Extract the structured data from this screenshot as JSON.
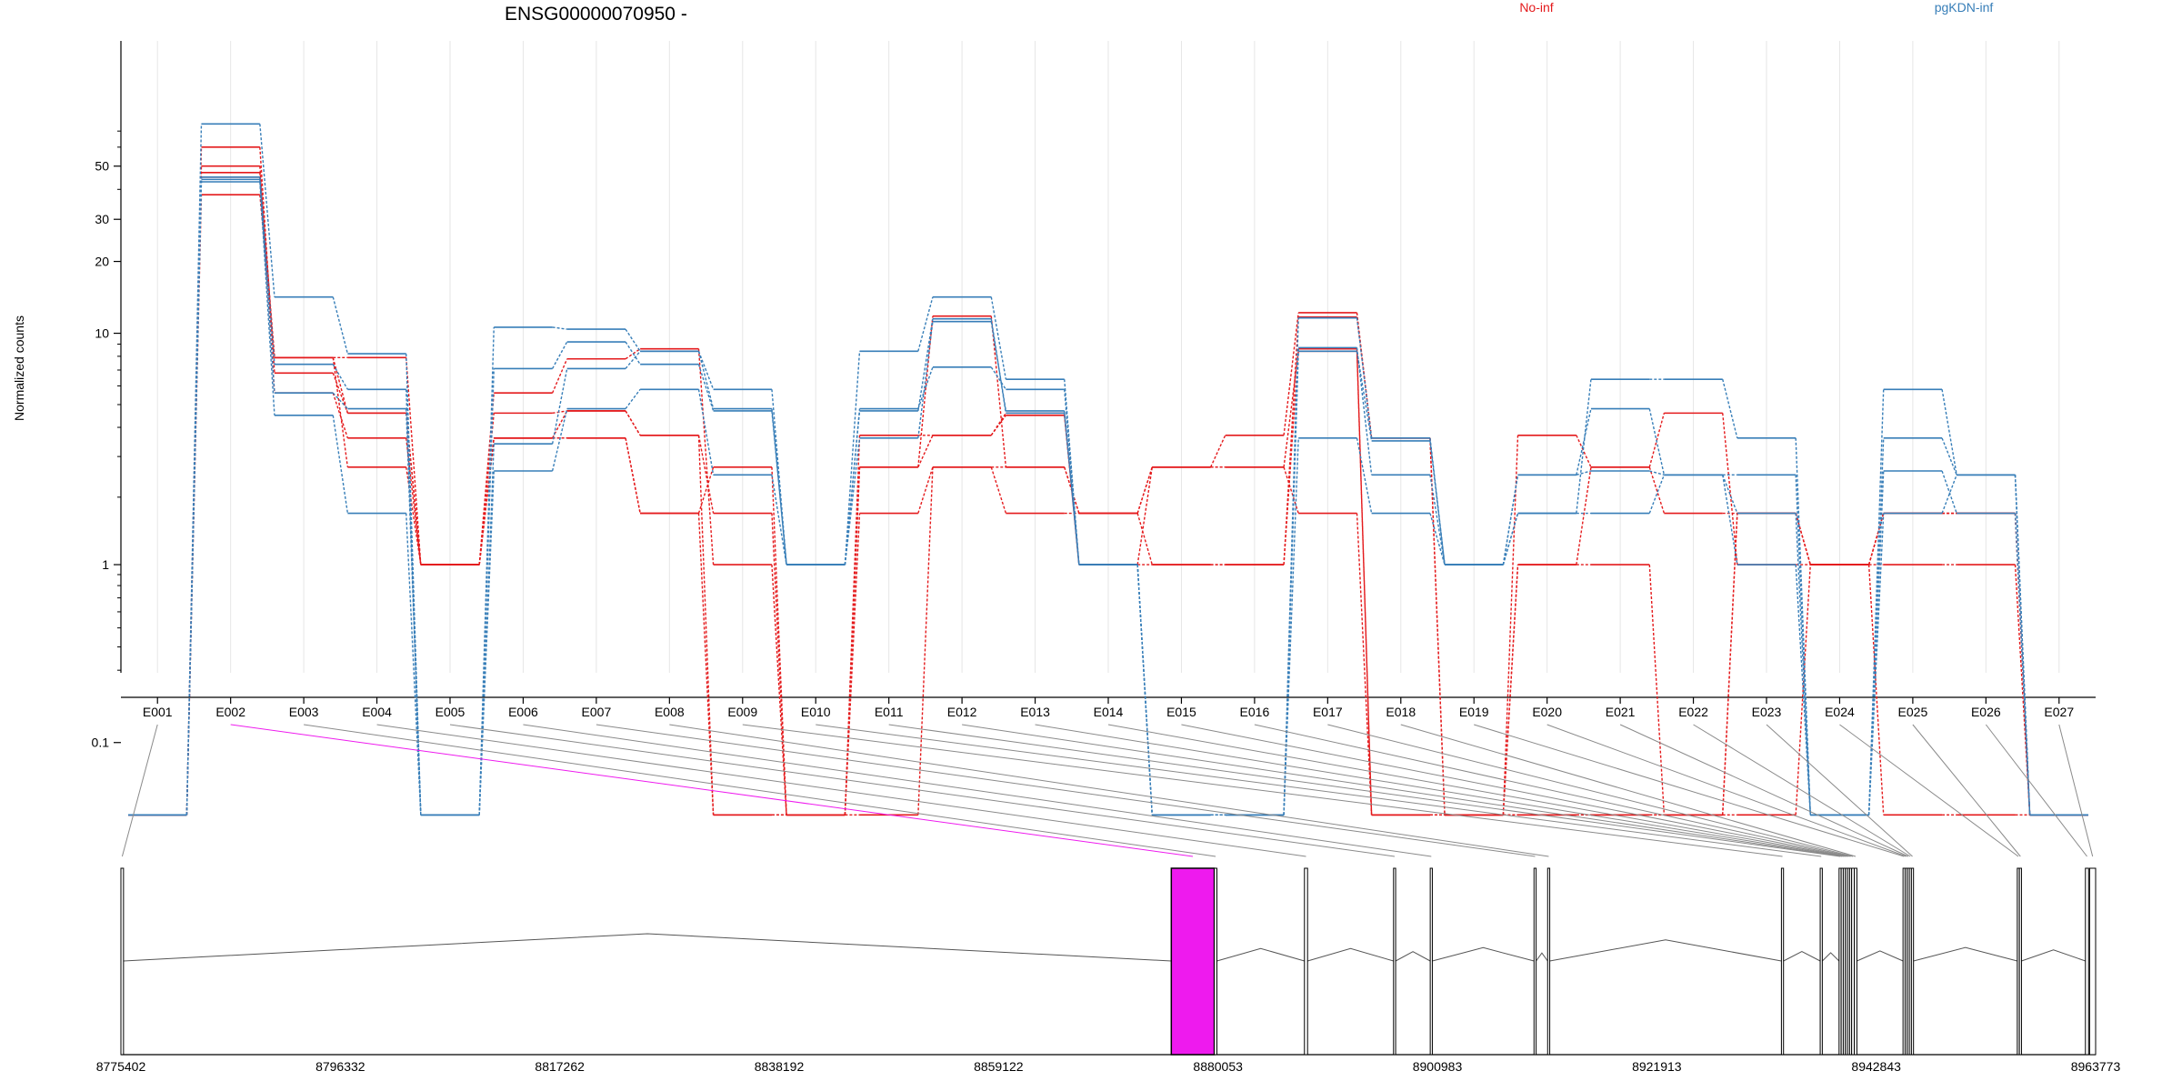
{
  "chart_data": {
    "type": "line",
    "title": "ENSG00000070950 -",
    "xlabel": "",
    "ylabel": "Normalized counts",
    "y_scale": "log",
    "y_ticks": [
      0.1,
      1,
      10,
      20,
      30,
      50
    ],
    "categories": [
      "E001",
      "E002",
      "E003",
      "E004",
      "E005",
      "E006",
      "E007",
      "E008",
      "E009",
      "E010",
      "E011",
      "E012",
      "E013",
      "E014",
      "E015",
      "E016",
      "E017",
      "E018",
      "E019",
      "E020",
      "E021",
      "E022",
      "E023",
      "E024",
      "E025",
      "E026",
      "E027"
    ],
    "series_colors": {
      "No-inf": "#e41a1c",
      "pgKDN-inf": "#377eb8"
    },
    "legend_position": "top-right",
    "legend": [
      {
        "name": "No-inf",
        "color": "#e41a1c"
      },
      {
        "name": "pgKDN-inf",
        "color": "#377eb8"
      }
    ],
    "series": [
      {
        "group": "No-inf",
        "values": [
          0,
          47,
          7.9,
          4.6,
          1,
          4.6,
          4.7,
          3.7,
          0,
          0,
          3.7,
          3.7,
          4.6,
          1,
          2.7,
          3.7,
          12.2,
          3.6,
          0,
          3.7,
          2.7,
          4.6,
          1,
          1,
          1,
          1,
          0
        ]
      },
      {
        "group": "No-inf",
        "values": [
          0,
          60,
          6.8,
          4.6,
          1,
          3.6,
          3.6,
          1.7,
          0,
          0,
          2.7,
          3.7,
          4.5,
          1,
          1,
          1,
          11.7,
          3.6,
          0,
          1,
          2.7,
          1.7,
          1.7,
          1,
          1.7,
          1.7,
          0
        ]
      },
      {
        "group": "No-inf",
        "values": [
          0,
          50,
          5.6,
          3.6,
          1,
          5.6,
          7.8,
          8.6,
          1,
          0,
          0,
          2.7,
          1.7,
          1.7,
          1,
          1,
          8.6,
          0,
          0,
          0,
          0,
          0,
          1.7,
          1,
          1.7,
          1.7,
          0
        ]
      },
      {
        "group": "No-inf",
        "values": [
          0,
          38,
          7.9,
          2.7,
          1,
          3.6,
          4.7,
          3.7,
          1.7,
          0,
          1.7,
          2.7,
          2.7,
          1.7,
          2.7,
          2.7,
          1.7,
          0,
          0,
          1,
          1,
          0,
          1.7,
          1,
          0,
          0,
          0
        ]
      },
      {
        "group": "No-inf",
        "values": [
          0,
          45,
          7.9,
          7.9,
          1,
          3.6,
          3.6,
          1.7,
          2.7,
          0,
          2.7,
          11.8,
          2.7,
          1.7,
          2.7,
          2.7,
          8.4,
          0,
          0,
          0,
          0,
          0,
          0,
          1,
          1.7,
          1.7,
          0
        ]
      },
      {
        "group": "pgKDN-inf",
        "values": [
          0,
          75,
          14.2,
          8.2,
          0,
          10.6,
          10.4,
          8.4,
          5.8,
          1,
          8.4,
          14.2,
          6.4,
          1,
          0,
          0,
          11.6,
          3.6,
          1,
          1.7,
          6.4,
          6.4,
          3.6,
          0,
          5.8,
          2.5,
          0
        ]
      },
      {
        "group": "pgKDN-inf",
        "values": [
          0,
          45,
          7.4,
          5.8,
          0,
          7.1,
          9.2,
          7.4,
          4.7,
          1,
          4.8,
          7.2,
          5.8,
          1,
          0,
          0,
          8.4,
          3.5,
          1,
          2.5,
          4.8,
          2.5,
          2.5,
          0,
          3.6,
          2.5,
          0
        ]
      },
      {
        "group": "pgKDN-inf",
        "values": [
          0,
          44,
          5.6,
          4.8,
          0,
          3.4,
          7.1,
          8.4,
          4.8,
          1,
          4.7,
          11.5,
          4.6,
          1,
          0,
          0,
          8.7,
          2.5,
          1,
          2.5,
          2.6,
          2.5,
          1.7,
          0,
          2.6,
          1.7,
          0
        ]
      },
      {
        "group": "pgKDN-inf",
        "values": [
          0,
          43,
          4.5,
          1.7,
          0,
          2.6,
          4.8,
          5.8,
          2.5,
          1,
          3.6,
          11.2,
          4.7,
          1,
          0,
          0,
          3.6,
          1.7,
          1,
          1.7,
          1.7,
          2.5,
          1,
          0,
          1.7,
          2.5,
          0
        ]
      }
    ],
    "gene_model": {
      "genomic_axis_ticks": [
        "8775402",
        "8796332",
        "8817262",
        "8838192",
        "8859122",
        "8880053",
        "8900983",
        "8921913",
        "8942843",
        "8963773"
      ],
      "genomic_range": [
        8775402,
        8963773
      ],
      "highlighted_exon": "E002",
      "highlight_color": "#ee1aee",
      "exons": [
        {
          "id": "E001",
          "start": 8775402,
          "end": 8775650
        },
        {
          "id": "E002",
          "start": 8875600,
          "end": 8879700
        },
        {
          "id": "E003",
          "start": 8879700,
          "end": 8879950
        },
        {
          "id": "E004",
          "start": 8888300,
          "end": 8888600
        },
        {
          "id": "E005",
          "start": 8896800,
          "end": 8897000
        },
        {
          "id": "E006",
          "start": 8900300,
          "end": 8900500
        },
        {
          "id": "E007",
          "start": 8910200,
          "end": 8910400
        },
        {
          "id": "E008",
          "start": 8911500,
          "end": 8911700
        },
        {
          "id": "E009",
          "start": 8933800,
          "end": 8934000
        },
        {
          "id": "E010",
          "start": 8937500,
          "end": 8937700
        },
        {
          "id": "E011",
          "start": 8939300,
          "end": 8939500
        },
        {
          "id": "E012",
          "start": 8939500,
          "end": 8939700
        },
        {
          "id": "E013",
          "start": 8939700,
          "end": 8939900
        },
        {
          "id": "E014",
          "start": 8939900,
          "end": 8940100
        },
        {
          "id": "E015",
          "start": 8940100,
          "end": 8940300
        },
        {
          "id": "E016",
          "start": 8940300,
          "end": 8940500
        },
        {
          "id": "E017",
          "start": 8940500,
          "end": 8940750
        },
        {
          "id": "E018",
          "start": 8940750,
          "end": 8941000
        },
        {
          "id": "E019",
          "start": 8945400,
          "end": 8945600
        },
        {
          "id": "E020",
          "start": 8945600,
          "end": 8945800
        },
        {
          "id": "E021",
          "start": 8945800,
          "end": 8946000
        },
        {
          "id": "E022",
          "start": 8946000,
          "end": 8946200
        },
        {
          "id": "E023",
          "start": 8946200,
          "end": 8946400
        },
        {
          "id": "E024",
          "start": 8956300,
          "end": 8956500
        },
        {
          "id": "E025",
          "start": 8956500,
          "end": 8956700
        },
        {
          "id": "E026",
          "start": 8962800,
          "end": 8963100
        },
        {
          "id": "E027",
          "start": 8963200,
          "end": 8963773
        }
      ]
    }
  }
}
